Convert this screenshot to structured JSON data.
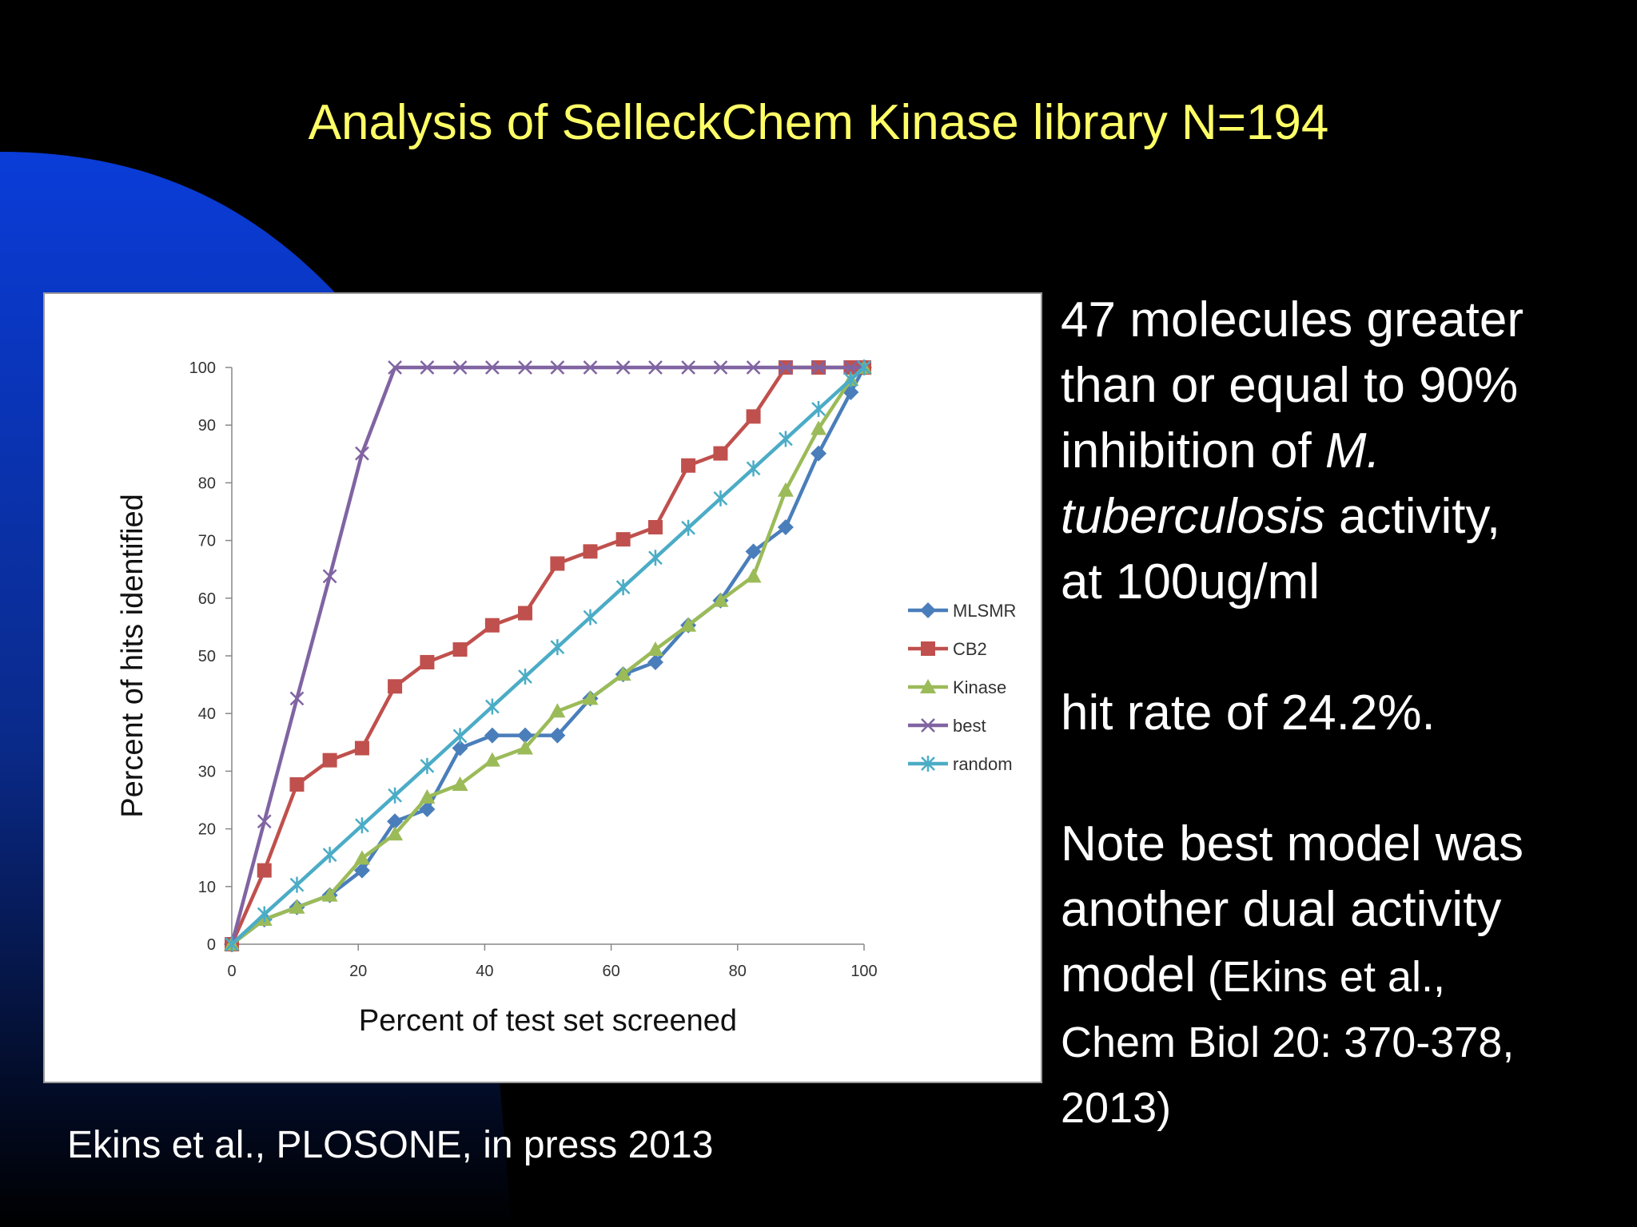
{
  "slide": {
    "title": "Analysis of SelleckChem Kinase library N=194",
    "citation": "Ekins et al., PLOSONE, in press 2013",
    "colors": {
      "background": "#000000",
      "title": "#ffff66",
      "text": "#ffffff",
      "accent_arc": "#0a3cd8"
    }
  },
  "side_text": {
    "p1_line1": "47 molecules greater",
    "p1_line2": "than or equal to 90%",
    "p1_line3_pre": "inhibition of ",
    "p1_line3_em": "M.",
    "p1_line4_em": "tuberculosis",
    "p1_line4_post": " activity,",
    "p1_line5": "at 100ug/ml",
    "p2": "hit rate of 24.2%.",
    "p3_line1": "Note best model was",
    "p3_line2": "another dual activity",
    "p3_line3": "model",
    "p3_ref_line1": " (Ekins et al.,",
    "p3_ref_line2": "Chem Biol 20: 370-378,",
    "p3_ref_line3": "2013)"
  },
  "chart_data": {
    "type": "line",
    "xlabel": "Percent of test set screened",
    "ylabel": "Percent of hits identified",
    "xlim": [
      0,
      100
    ],
    "ylim": [
      0,
      100
    ],
    "x_ticks": [
      0,
      20,
      40,
      60,
      80,
      100
    ],
    "y_ticks": [
      0,
      10,
      20,
      30,
      40,
      50,
      60,
      70,
      80,
      90,
      100
    ],
    "grid": false,
    "legend_position": "right",
    "series": [
      {
        "name": "MLSMR",
        "color": "#4a7ebb",
        "marker": "diamond",
        "x": [
          0,
          5.15,
          10.3,
          15.5,
          20.6,
          25.8,
          30.9,
          36.1,
          41.2,
          46.4,
          51.5,
          56.7,
          61.9,
          67.0,
          72.2,
          77.3,
          82.5,
          87.6,
          92.8,
          97.9,
          100
        ],
        "y": [
          0,
          4.3,
          6.4,
          8.5,
          12.8,
          21.3,
          23.4,
          34.0,
          36.2,
          36.2,
          36.2,
          42.6,
          46.8,
          48.9,
          55.3,
          59.6,
          68.1,
          72.3,
          85.1,
          95.7,
          100
        ]
      },
      {
        "name": "CB2",
        "color": "#c0504d",
        "marker": "square",
        "x": [
          0,
          5.15,
          10.3,
          15.5,
          20.6,
          25.8,
          30.9,
          36.1,
          41.2,
          46.4,
          51.5,
          56.7,
          61.9,
          67.0,
          72.2,
          77.3,
          82.5,
          87.6,
          92.8,
          97.9,
          100
        ],
        "y": [
          0,
          12.8,
          27.7,
          31.9,
          34.0,
          44.7,
          48.9,
          51.1,
          55.3,
          57.4,
          66.0,
          68.1,
          70.2,
          72.3,
          83.0,
          85.1,
          91.5,
          100,
          100,
          100,
          100
        ]
      },
      {
        "name": "Kinase",
        "color": "#9bbb59",
        "marker": "triangle",
        "x": [
          0,
          5.15,
          10.3,
          15.5,
          20.6,
          25.8,
          30.9,
          36.1,
          41.2,
          46.4,
          51.5,
          56.7,
          61.9,
          67.0,
          72.2,
          77.3,
          82.5,
          87.6,
          92.8,
          97.9,
          100
        ],
        "y": [
          0,
          4.3,
          6.4,
          8.5,
          14.9,
          19.1,
          25.5,
          27.7,
          31.9,
          34.0,
          40.4,
          42.6,
          46.8,
          51.1,
          55.3,
          59.6,
          63.8,
          78.7,
          89.4,
          97.9,
          100
        ]
      },
      {
        "name": "best",
        "color": "#8064a2",
        "marker": "x",
        "x": [
          0,
          5.15,
          10.3,
          15.5,
          20.6,
          25.8,
          30.9,
          36.1,
          41.2,
          46.4,
          51.5,
          56.7,
          61.9,
          67.0,
          72.2,
          77.3,
          82.5,
          87.6,
          92.8,
          97.9,
          100
        ],
        "y": [
          0,
          21.3,
          42.6,
          63.8,
          85.1,
          100,
          100,
          100,
          100,
          100,
          100,
          100,
          100,
          100,
          100,
          100,
          100,
          100,
          100,
          100,
          100
        ]
      },
      {
        "name": "random",
        "color": "#4bacc6",
        "marker": "star",
        "x": [
          0,
          5.15,
          10.3,
          15.5,
          20.6,
          25.8,
          30.9,
          36.1,
          41.2,
          46.4,
          51.5,
          56.7,
          61.9,
          67.0,
          72.2,
          77.3,
          82.5,
          87.6,
          92.8,
          97.9,
          100
        ],
        "y": [
          0,
          5.2,
          10.3,
          15.5,
          20.6,
          25.8,
          30.9,
          36.1,
          41.2,
          46.4,
          51.5,
          56.7,
          61.9,
          67.0,
          72.2,
          77.3,
          82.5,
          87.6,
          92.8,
          97.9,
          100
        ]
      }
    ]
  }
}
